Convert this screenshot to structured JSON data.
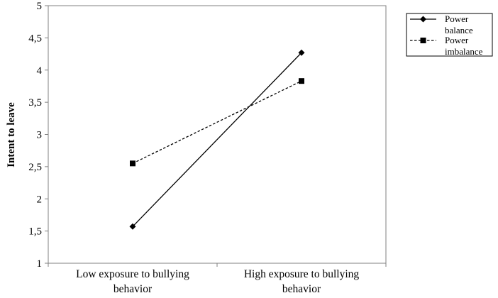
{
  "chart_data": {
    "type": "line",
    "title": "",
    "xlabel": "",
    "ylabel": "Intent to leave",
    "ylim": [
      1,
      5
    ],
    "yticks": [
      "1",
      "1,5",
      "2",
      "2,5",
      "3",
      "3,5",
      "4",
      "4,5",
      "5"
    ],
    "categories": [
      [
        "Low exposure to bullying",
        "behavior"
      ],
      [
        "High exposure to bullying",
        "behavior"
      ]
    ],
    "grid": false,
    "legend_position": "right",
    "series": [
      {
        "name": [
          "Power",
          "balance"
        ],
        "values": [
          1.57,
          4.27
        ],
        "marker": "diamond",
        "line": "solid",
        "color": "#000000"
      },
      {
        "name": [
          "Power",
          "imbalance"
        ],
        "values": [
          2.55,
          3.83
        ],
        "marker": "square",
        "line": "dashed",
        "color": "#000000"
      }
    ]
  }
}
